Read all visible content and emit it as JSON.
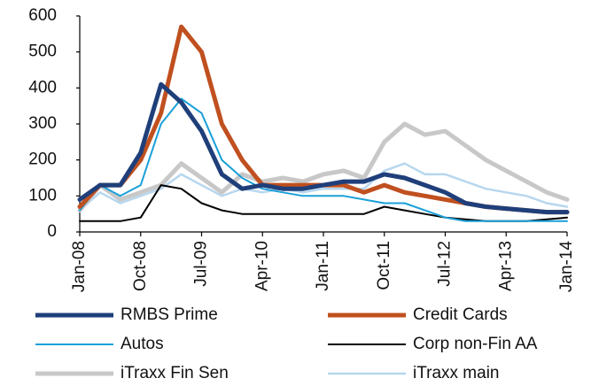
{
  "chart_data": {
    "type": "line",
    "categories": [
      "Jan-08",
      null,
      null,
      "Oct-08",
      null,
      null,
      "Jul-09",
      null,
      null,
      "Apr-10",
      null,
      null,
      "Jan-11",
      null,
      null,
      "Oct-11",
      null,
      null,
      "Jul-12",
      null,
      null,
      "Apr-13",
      null,
      null,
      "Jan-14"
    ],
    "ylim": [
      0,
      600
    ],
    "yticks": [
      0,
      100,
      200,
      300,
      400,
      500,
      600
    ],
    "series": [
      {
        "name": "RMBS Prime",
        "color": "#1f3f7a",
        "values": [
          90,
          130,
          130,
          220,
          410,
          360,
          280,
          160,
          120,
          130,
          120,
          120,
          130,
          140,
          140,
          160,
          150,
          130,
          110,
          80,
          70,
          65,
          60,
          55,
          55
        ]
      },
      {
        "name": "Credit Cards",
        "color": "#c0501f",
        "values": [
          70,
          130,
          130,
          200,
          330,
          570,
          500,
          300,
          200,
          130,
          130,
          130,
          130,
          130,
          110,
          130,
          110,
          100,
          90,
          80,
          70,
          65,
          60,
          55,
          55
        ]
      },
      {
        "name": "Autos",
        "color": "#1aa0d8",
        "values": [
          60,
          130,
          100,
          130,
          300,
          370,
          330,
          200,
          150,
          120,
          110,
          100,
          100,
          100,
          90,
          80,
          80,
          60,
          40,
          30,
          30,
          30,
          30,
          30,
          30
        ]
      },
      {
        "name": "Corp non-Fin AA",
        "color": "#000000",
        "values": [
          30,
          30,
          30,
          40,
          130,
          120,
          80,
          60,
          50,
          50,
          50,
          50,
          50,
          50,
          50,
          70,
          60,
          50,
          40,
          35,
          30,
          30,
          30,
          35,
          40
        ]
      },
      {
        "name": "iTraxx Fin Sen",
        "color": "#c8c8c8",
        "values": [
          60,
          130,
          90,
          110,
          130,
          190,
          150,
          110,
          160,
          140,
          150,
          140,
          160,
          170,
          150,
          250,
          300,
          270,
          280,
          240,
          200,
          170,
          140,
          110,
          90
        ]
      },
      {
        "name": "iTraxx main",
        "color": "#b7d7ee",
        "values": [
          60,
          110,
          80,
          100,
          120,
          160,
          130,
          100,
          120,
          110,
          120,
          110,
          120,
          120,
          120,
          170,
          190,
          160,
          160,
          140,
          120,
          110,
          100,
          80,
          70
        ]
      }
    ]
  }
}
